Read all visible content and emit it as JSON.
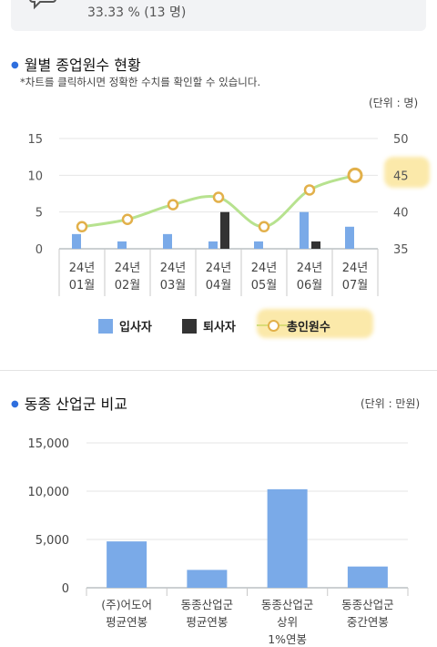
{
  "top": {
    "icon": "chat-bubble-icon",
    "value_text": "33.33 % (13 명)"
  },
  "section1": {
    "title": "월별 종업원수 현황",
    "note": "*차트를 클릭하시면 정확한 수치를 확인할 수 있습니다.",
    "unit": "(단위 : 명)"
  },
  "section2": {
    "title": "동종 산업군 비교",
    "unit": "(단위 : 만원)"
  },
  "colors": {
    "bar_blue": "#7aaae8",
    "bar_dark": "#333333",
    "line_green": "#b7e28f",
    "marker": "#e2b04a",
    "highlight": "#f8d764",
    "dot_blue": "#2f6fde"
  },
  "chart_data": [
    {
      "type": "bar",
      "categories": [
        "24년 01월",
        "24년 02월",
        "24년 03월",
        "24년 04월",
        "24년 05월",
        "24년 06월",
        "24년 07월"
      ],
      "series": [
        {
          "name": "입사자",
          "axis": "left",
          "values": [
            2,
            1,
            2,
            1,
            1,
            5,
            3
          ]
        },
        {
          "name": "퇴사자",
          "axis": "left",
          "values": [
            0,
            0,
            0,
            5,
            0,
            1,
            0
          ]
        },
        {
          "name": "총인원수",
          "axis": "right",
          "type": "line",
          "values": [
            38,
            39,
            41,
            42,
            38,
            43,
            45
          ]
        }
      ],
      "left_ticks": [
        "15",
        "10",
        "5",
        "0"
      ],
      "right_ticks": [
        "50",
        "45",
        "40",
        "35"
      ],
      "ylim_left": [
        0,
        15
      ],
      "ylim_right": [
        35,
        50
      ],
      "grid": true,
      "legend_position": "bottom"
    },
    {
      "type": "bar",
      "categories": [
        "(주)어도어 평균연봉",
        "동종산업군 평균연봉",
        "동종산업군 상위 1%연봉",
        "동종산업군 중간연봉"
      ],
      "category_lines": [
        [
          "(주)어도어",
          "평균연봉"
        ],
        [
          "동종산업군",
          "평균연봉"
        ],
        [
          "동종산업군",
          "상위",
          "1%연봉"
        ],
        [
          "동종산업군",
          "중간연봉"
        ]
      ],
      "values": [
        4800,
        1850,
        10200,
        2200
      ],
      "y_ticks": [
        "15,000",
        "10,000",
        "5,000",
        "0"
      ],
      "ylim": [
        0,
        15000
      ],
      "grid": true
    }
  ]
}
